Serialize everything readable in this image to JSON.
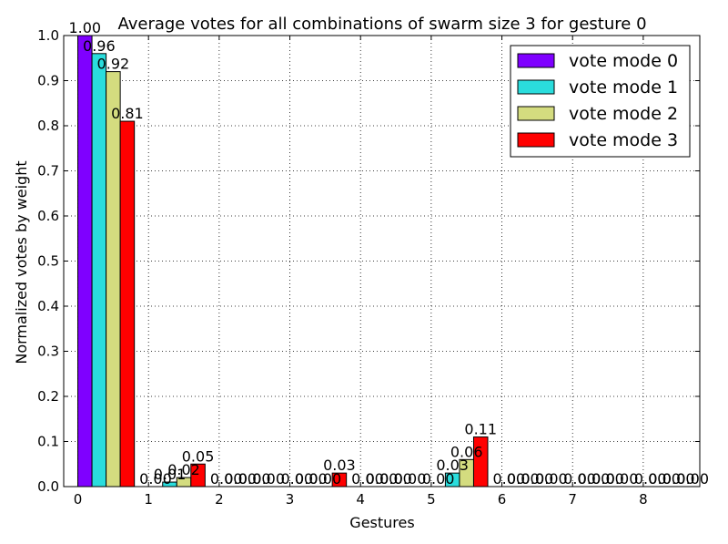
{
  "chart_data": {
    "type": "bar",
    "title": "Average votes for all combinations of swarm size 3 for gesture 0",
    "xlabel": "Gestures",
    "ylabel": "Normalized votes by weight",
    "ylim": [
      0,
      1.0
    ],
    "xlim": [
      -0.2,
      8.8
    ],
    "x_ticks": [
      0,
      1,
      2,
      3,
      4,
      5,
      6,
      7,
      8
    ],
    "x_tick_labels": [
      "0",
      "1",
      "2",
      "3",
      "4",
      "5",
      "6",
      "7",
      "8"
    ],
    "y_ticks": [
      0,
      0.1,
      0.2,
      0.3,
      0.4,
      0.5,
      0.6,
      0.7,
      0.8,
      0.9,
      1.0
    ],
    "y_tick_labels": [
      "0.0",
      "0.1",
      "0.2",
      "0.3",
      "0.4",
      "0.5",
      "0.6",
      "0.7",
      "0.8",
      "0.9",
      "1.0"
    ],
    "grid": true,
    "legend_position": "top-right",
    "categories": [
      0,
      1,
      2,
      3,
      4,
      5,
      6,
      7,
      8
    ],
    "series": [
      {
        "name": "vote mode 0",
        "color": "#7f00ff",
        "values": [
          1.0,
          0.0,
          0.0,
          0.0,
          0.0,
          0.0,
          0.0,
          0.0,
          0.0
        ],
        "labels": [
          "1.00",
          "0.00",
          "0.00",
          "0.00",
          "0.00",
          "0.00",
          "0.00",
          "0.00",
          "0.00"
        ]
      },
      {
        "name": "vote mode 1",
        "color": "#2adddd",
        "values": [
          0.96,
          0.01,
          0.0,
          0.0,
          0.0,
          0.03,
          0.0,
          0.0,
          0.0
        ],
        "labels": [
          "0.96",
          "0.01",
          "0.00",
          "0.00",
          "0.00",
          "0.03",
          "0.00",
          "0.00",
          "0.00"
        ]
      },
      {
        "name": "vote mode 2",
        "color": "#d4dc7f",
        "values": [
          0.92,
          0.02,
          0.0,
          0.0,
          0.0,
          0.06,
          0.0,
          0.0,
          0.0
        ],
        "labels": [
          "0.92",
          "0.02",
          "0.00",
          "0.00",
          "0.00",
          "0.06",
          "0.00",
          "0.00",
          "0.00"
        ]
      },
      {
        "name": "vote mode 3",
        "color": "#ff0000",
        "values": [
          0.81,
          0.05,
          0.0,
          0.03,
          0.0,
          0.11,
          0.0,
          0.0,
          0.0
        ],
        "labels": [
          "0.81",
          "0.05",
          "0.00",
          "0.03",
          "0.00",
          "0.11",
          "0.00",
          "0.00",
          "0.00"
        ]
      }
    ]
  }
}
